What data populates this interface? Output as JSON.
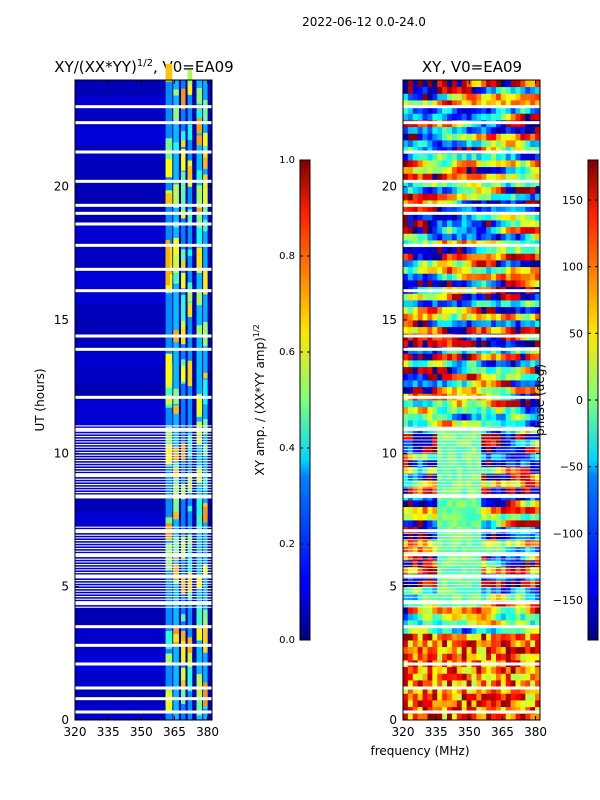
{
  "figure": {
    "suptitle": "2022-06-12 0.0-24.0",
    "xlabel": "frequency (MHz)"
  },
  "chart_data": [
    {
      "type": "heatmap",
      "title": "XY/(XX*YY)",
      "title_sup": "1/2",
      "title_suffix": ", V0=EA09",
      "xlabel": "",
      "ylabel": "UT (hours)",
      "xlim": [
        320,
        382
      ],
      "ylim": [
        0,
        24
      ],
      "xticks": [
        320,
        335,
        350,
        365,
        380
      ],
      "yticks": [
        0,
        5,
        10,
        15,
        20
      ],
      "value_range": [
        0.0,
        1.0
      ],
      "colormap": "jet",
      "bright_channels_MHz": [
        [
          361,
          364
        ],
        [
          364.5,
          367
        ],
        [
          368,
          370
        ],
        [
          371,
          373
        ],
        [
          375,
          377.5
        ],
        [
          378,
          380
        ]
      ],
      "flagged_hours": [
        0.3,
        0.8,
        1.2,
        2.1,
        2.8,
        3.5,
        4.4,
        5.4,
        6.2,
        7.1,
        8.4,
        9.2,
        10.9,
        12.1,
        13.9,
        14.4,
        16.1,
        16.9,
        17.8,
        18.6,
        19.0,
        19.3,
        20.2,
        21.3,
        22.4,
        23.0
      ],
      "sparse_hours": [
        [
          4.2,
          7.2
        ],
        [
          8.3,
          11.0
        ]
      ]
    },
    {
      "type": "heatmap",
      "title": "XY, V0=EA09",
      "xlabel": "frequency (MHz)",
      "ylabel": "",
      "xlim": [
        320,
        382
      ],
      "ylim": [
        0,
        24
      ],
      "xticks": [
        320,
        335,
        350,
        365,
        380
      ],
      "yticks": [
        0,
        5,
        10,
        15,
        20
      ],
      "value_range": [
        -180,
        180
      ],
      "colormap": "jet",
      "flagged_hours": [
        0.3,
        1.2,
        2.1,
        3.5,
        4.4,
        5.4,
        6.2,
        7.1,
        8.4,
        10.9,
        12.1,
        13.9,
        14.4,
        16.1,
        17.8,
        19.0,
        19.3,
        20.2,
        21.3,
        22.4,
        23.0
      ],
      "sparse_hours": [
        [
          4.2,
          7.2
        ],
        [
          8.3,
          11.0
        ]
      ]
    }
  ],
  "colorbars": [
    {
      "label": "XY amp. / (XX*YY amp)",
      "label_sup": "1/2",
      "ticks": [
        0.0,
        0.2,
        0.4,
        0.6,
        0.8,
        1.0
      ],
      "tick_labels": [
        "0.0",
        "0.2",
        "0.4",
        "0.6",
        "0.8",
        "1.0"
      ],
      "range": [
        0.0,
        1.0
      ]
    },
    {
      "label": "phase (deg)",
      "ticks": [
        -150,
        -100,
        -50,
        0,
        50,
        100,
        150
      ],
      "tick_labels": [
        "−150",
        "−100",
        "−50",
        "0",
        "50",
        "100",
        "150"
      ],
      "range": [
        -180,
        180
      ]
    }
  ]
}
